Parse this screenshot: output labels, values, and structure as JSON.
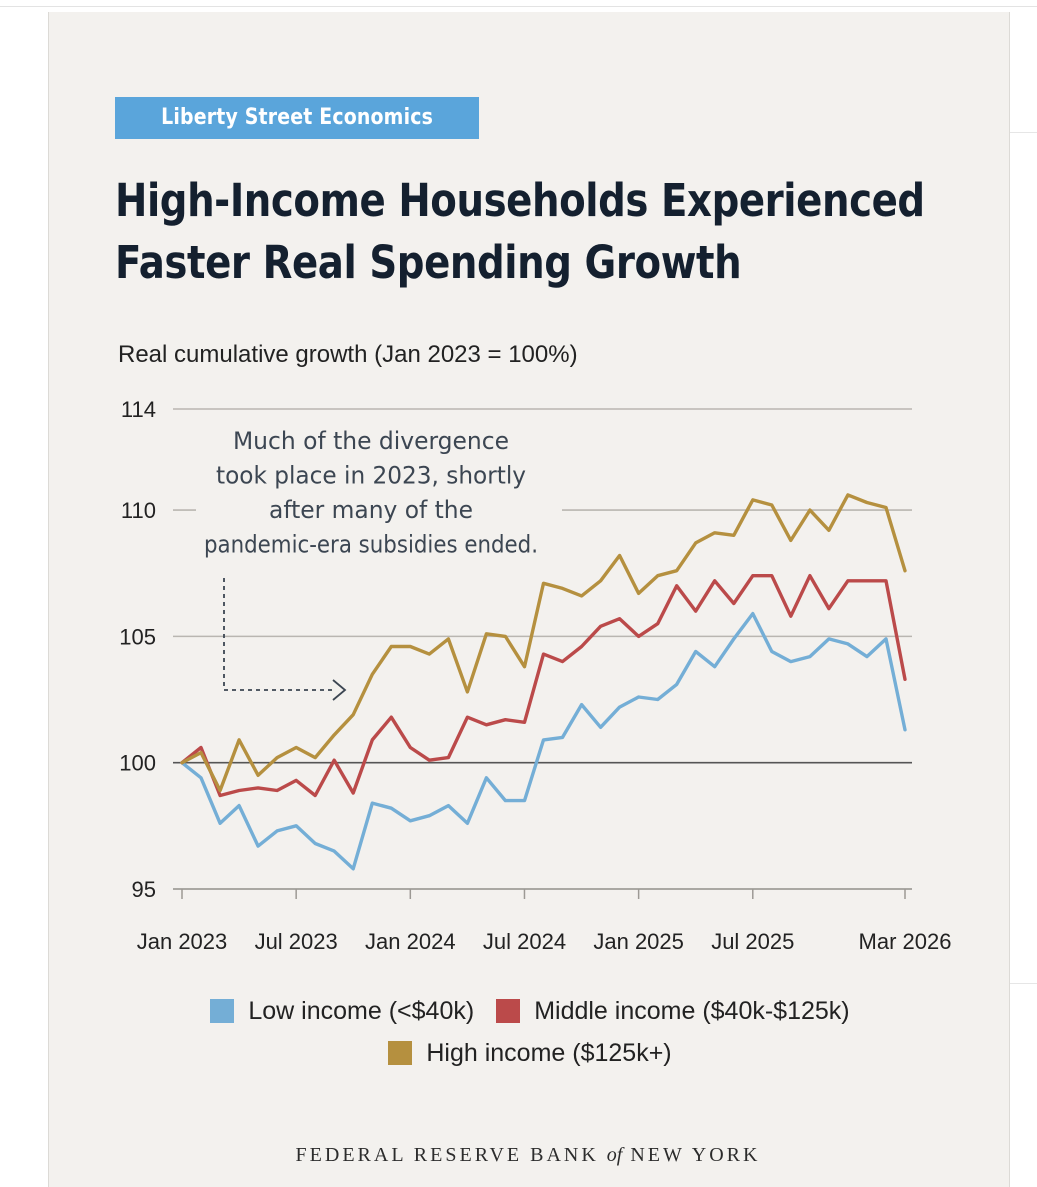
{
  "brand": {
    "badge": "Liberty Street Economics",
    "footer_pre": "FEDERAL RESERVE BANK",
    "footer_of": "of",
    "footer_post": "NEW YORK"
  },
  "title_line1": "High-Income Households Experienced",
  "title_line2": "Faster Real Spending Growth",
  "colors": {
    "badge": "#5aa5db",
    "low": "#74aed6",
    "middle": "#bb4a4a",
    "high": "#b5903f"
  },
  "chart_data": {
    "type": "line",
    "subtitle": "Real cumulative growth (Jan 2023 = 100%)",
    "y_ticks": [
      114,
      110,
      105,
      100,
      95
    ],
    "ylim": [
      95,
      114
    ],
    "x_tick_labels": [
      "Jan 2023",
      "Jul 2023",
      "Jan 2024",
      "Jul 2024",
      "Jan 2025",
      "Jul 2025",
      "Mar 2026"
    ],
    "x_tick_indices": [
      0,
      6,
      12,
      18,
      24,
      30,
      38
    ],
    "x": [
      "Jan 2023",
      "Feb 2023",
      "Mar 2023",
      "Apr 2023",
      "May 2023",
      "Jun 2023",
      "Jul 2023",
      "Aug 2023",
      "Sep 2023",
      "Oct 2023",
      "Nov 2023",
      "Dec 2023",
      "Jan 2024",
      "Feb 2024",
      "Mar 2024",
      "Apr 2024",
      "May 2024",
      "Jun 2024",
      "Jul 2024",
      "Aug 2024",
      "Sep 2024",
      "Oct 2024",
      "Nov 2024",
      "Dec 2024",
      "Jan 2025",
      "Feb 2025",
      "Mar 2025",
      "Apr 2025",
      "May 2025",
      "Jun 2025",
      "Jul 2025",
      "Aug 2025",
      "Sep 2025",
      "Oct 2025",
      "Nov 2025",
      "Dec 2025",
      "Jan 2026",
      "Feb 2026",
      "Mar 2026"
    ],
    "series": [
      {
        "name": "Low income (<$40k)",
        "color": "#74aed6",
        "values": [
          100.0,
          99.4,
          97.6,
          98.3,
          96.7,
          97.3,
          97.5,
          96.8,
          96.5,
          95.8,
          98.4,
          98.2,
          97.7,
          97.9,
          98.3,
          97.6,
          99.4,
          98.5,
          98.5,
          100.9,
          101.0,
          102.3,
          101.4,
          102.2,
          102.6,
          102.5,
          103.1,
          104.4,
          103.8,
          104.9,
          105.9,
          104.4,
          104.0,
          104.2,
          104.9,
          104.7,
          104.2,
          104.9,
          101.3
        ]
      },
      {
        "name": "Middle income ($40k-$125k)",
        "color": "#bb4a4a",
        "values": [
          100.0,
          100.6,
          98.7,
          98.9,
          99.0,
          98.9,
          99.3,
          98.7,
          100.1,
          98.8,
          100.9,
          101.8,
          100.6,
          100.1,
          100.2,
          101.8,
          101.5,
          101.7,
          101.6,
          104.3,
          104.0,
          104.6,
          105.4,
          105.7,
          105.0,
          105.5,
          107.0,
          106.0,
          107.2,
          106.3,
          107.4,
          107.4,
          105.8,
          107.4,
          106.1,
          107.2,
          107.2,
          107.2,
          103.3
        ]
      },
      {
        "name": "High income ($125k+)",
        "color": "#b5903f",
        "values": [
          100.0,
          100.4,
          98.9,
          100.9,
          99.5,
          100.2,
          100.6,
          100.2,
          101.1,
          101.9,
          103.5,
          104.6,
          104.6,
          104.3,
          104.9,
          102.8,
          105.1,
          105.0,
          103.8,
          107.1,
          106.9,
          106.6,
          107.2,
          108.2,
          106.7,
          107.4,
          107.6,
          108.7,
          109.1,
          109.0,
          110.4,
          110.2,
          108.8,
          110.0,
          109.2,
          110.6,
          110.3,
          110.1,
          107.6
        ]
      }
    ],
    "annotation": [
      "Much of the divergence",
      "took place in 2023, shortly",
      "after many of the",
      "pandemic-era subsidies ended."
    ]
  }
}
